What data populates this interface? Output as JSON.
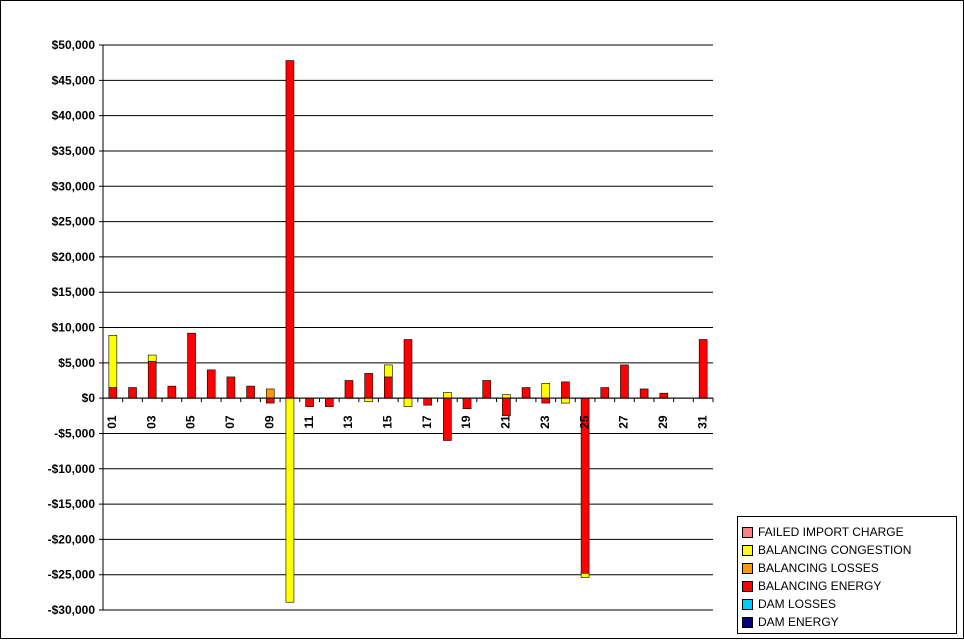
{
  "chart_data": {
    "type": "bar",
    "stacked": true,
    "title": "",
    "xlabel": "",
    "ylabel": "",
    "ylim": [
      -30000,
      50000
    ],
    "y_ticks": [
      50000,
      45000,
      40000,
      35000,
      30000,
      25000,
      20000,
      15000,
      10000,
      5000,
      0,
      -5000,
      -10000,
      -15000,
      -20000,
      -25000,
      -30000
    ],
    "y_tick_labels": [
      "$50,000",
      "$45,000",
      "$40,000",
      "$35,000",
      "$30,000",
      "$25,000",
      "$20,000",
      "$15,000",
      "$10,000",
      "$5,000",
      "$0",
      "-$5,000",
      "-$10,000",
      "-$15,000",
      "-$20,000",
      "-$25,000",
      "-$30,000"
    ],
    "grid": true,
    "legend_position": "bottom-right",
    "categories": [
      "01",
      "02",
      "03",
      "04",
      "05",
      "06",
      "07",
      "08",
      "09",
      "10",
      "11",
      "12",
      "13",
      "14",
      "15",
      "16",
      "17",
      "18",
      "19",
      "20",
      "21",
      "22",
      "23",
      "24",
      "25",
      "26",
      "27",
      "28",
      "29",
      "30",
      "31"
    ],
    "x_tick_labels": [
      "01",
      "03",
      "05",
      "07",
      "09",
      "11",
      "13",
      "15",
      "17",
      "19",
      "21",
      "23",
      "25",
      "27",
      "29",
      "31"
    ],
    "series": [
      {
        "name": "DAM ENERGY",
        "color": "#000080",
        "values": [
          0,
          0,
          0,
          0,
          0,
          0,
          0,
          0,
          0,
          0,
          0,
          0,
          0,
          0,
          0,
          0,
          0,
          0,
          0,
          0,
          0,
          0,
          0,
          0,
          0,
          0,
          0,
          0,
          0,
          0,
          0
        ]
      },
      {
        "name": "DAM LOSSES",
        "color": "#00CCFF",
        "values": [
          0,
          0,
          0,
          0,
          0,
          0,
          0,
          0,
          0,
          0,
          0,
          0,
          0,
          0,
          0,
          0,
          0,
          0,
          0,
          0,
          0,
          0,
          0,
          0,
          0,
          0,
          0,
          0,
          0,
          0,
          0
        ]
      },
      {
        "name": "BALANCING ENERGY",
        "color": "#FF0000",
        "values": [
          1500,
          1500,
          5200,
          1700,
          9200,
          4000,
          3000,
          1700,
          -700,
          47800,
          -1200,
          -1200,
          2500,
          3500,
          3000,
          8300,
          -1000,
          -6000,
          -1500,
          2500,
          -2500,
          1500,
          -700,
          2300,
          -24800,
          1500,
          4700,
          1300,
          700,
          0,
          8300
        ]
      },
      {
        "name": "BALANCING LOSSES",
        "color": "#FF9900",
        "values": [
          0,
          0,
          0,
          0,
          0,
          0,
          0,
          0,
          1300,
          0,
          0,
          0,
          0,
          0,
          0,
          0,
          0,
          0,
          0,
          0,
          0,
          0,
          0,
          0,
          0,
          0,
          0,
          0,
          0,
          0,
          0
        ]
      },
      {
        "name": "BALANCING CONGESTION",
        "color": "#FFFF00",
        "values": [
          7400,
          0,
          900,
          0,
          0,
          0,
          0,
          0,
          0,
          -28900,
          0,
          0,
          0,
          -500,
          1700,
          -1200,
          0,
          800,
          0,
          0,
          500,
          0,
          2100,
          -700,
          -600,
          0,
          0,
          0,
          0,
          0,
          0
        ]
      },
      {
        "name": "FAILED IMPORT CHARGE",
        "color": "#FF8080",
        "values": [
          0,
          0,
          0,
          0,
          0,
          0,
          0,
          0,
          0,
          0,
          0,
          0,
          0,
          0,
          0,
          0,
          0,
          0,
          0,
          0,
          0,
          0,
          0,
          0,
          0,
          0,
          0,
          0,
          0,
          0,
          0
        ]
      }
    ],
    "legend_order": [
      "FAILED IMPORT CHARGE",
      "BALANCING CONGESTION",
      "BALANCING LOSSES",
      "BALANCING ENERGY",
      "DAM LOSSES",
      "DAM ENERGY"
    ]
  }
}
